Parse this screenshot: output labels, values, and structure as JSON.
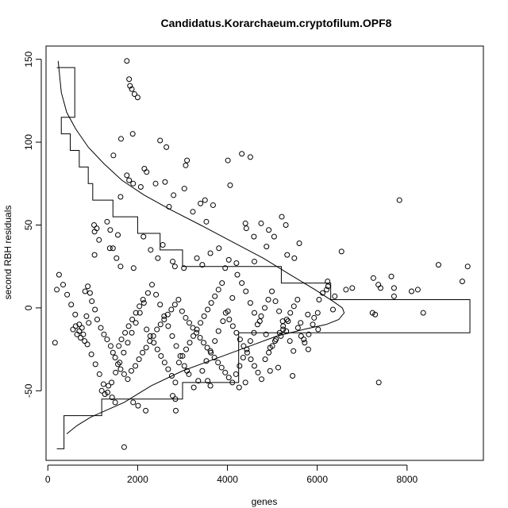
{
  "chart_data": {
    "type": "scatter",
    "title": "Candidatus.Korarchaeum.cryptofilum.OPF8",
    "xlabel": "genes",
    "ylabel": "second RBH residuals",
    "xlim": [
      -40,
      9700
    ],
    "ylim": [
      -92,
      158
    ],
    "x_ticks": [
      0,
      2000,
      4000,
      6000,
      8000
    ],
    "y_ticks": [
      -50,
      0,
      50,
      100,
      150
    ],
    "points": [
      [
        1760,
        149
      ],
      [
        1810,
        138
      ],
      [
        1830,
        134
      ],
      [
        1870,
        132
      ],
      [
        1930,
        129
      ],
      [
        2000,
        127
      ],
      [
        1890,
        105
      ],
      [
        2500,
        101
      ],
      [
        2640,
        97
      ],
      [
        1460,
        92
      ],
      [
        1630,
        102
      ],
      [
        3070,
        86
      ],
      [
        3100,
        89
      ],
      [
        4010,
        89
      ],
      [
        4320,
        93
      ],
      [
        4510,
        91
      ],
      [
        2150,
        84
      ],
      [
        2200,
        82
      ],
      [
        1760,
        80
      ],
      [
        1810,
        77
      ],
      [
        1900,
        75
      ],
      [
        2070,
        73
      ],
      [
        2400,
        75
      ],
      [
        2610,
        76
      ],
      [
        2800,
        68
      ],
      [
        3040,
        72
      ],
      [
        4060,
        74
      ],
      [
        3230,
        58
      ],
      [
        3400,
        63
      ],
      [
        3500,
        65
      ],
      [
        3680,
        62
      ],
      [
        3530,
        52
      ],
      [
        1620,
        67
      ],
      [
        2700,
        61
      ],
      [
        7830,
        65
      ],
      [
        4400,
        51
      ],
      [
        4420,
        48
      ],
      [
        4750,
        51
      ],
      [
        4920,
        47
      ],
      [
        5210,
        55
      ],
      [
        5300,
        50
      ],
      [
        4590,
        43
      ],
      [
        5040,
        43
      ],
      [
        4870,
        37
      ],
      [
        5600,
        39
      ],
      [
        5490,
        30
      ],
      [
        5330,
        32
      ],
      [
        4600,
        28
      ],
      [
        1030,
        50
      ],
      [
        1090,
        48
      ],
      [
        1040,
        46
      ],
      [
        1320,
        52
      ],
      [
        1390,
        47
      ],
      [
        1560,
        44
      ],
      [
        1140,
        41
      ],
      [
        1380,
        36
      ],
      [
        1040,
        32
      ],
      [
        1450,
        36
      ],
      [
        1530,
        30
      ],
      [
        1620,
        25
      ],
      [
        1910,
        24
      ],
      [
        2130,
        43
      ],
      [
        2290,
        35
      ],
      [
        2560,
        38
      ],
      [
        2450,
        30
      ],
      [
        2780,
        28
      ],
      [
        2830,
        25
      ],
      [
        3030,
        24
      ],
      [
        3320,
        30
      ],
      [
        3440,
        26
      ],
      [
        3620,
        33
      ],
      [
        3810,
        36
      ],
      [
        4030,
        29
      ],
      [
        4200,
        27
      ],
      [
        3950,
        24
      ],
      [
        6540,
        34
      ],
      [
        8700,
        26
      ],
      [
        9350,
        25
      ],
      [
        9230,
        16
      ],
      [
        7250,
        18
      ],
      [
        7360,
        14
      ],
      [
        7410,
        12
      ],
      [
        7650,
        19
      ],
      [
        7710,
        12
      ],
      [
        7710,
        7
      ],
      [
        8100,
        10
      ],
      [
        8240,
        11
      ],
      [
        8360,
        -3
      ],
      [
        7230,
        -3
      ],
      [
        7290,
        -4
      ],
      [
        7370,
        -45
      ],
      [
        6780,
        12
      ],
      [
        6640,
        11
      ],
      [
        6390,
        7
      ],
      [
        6230,
        16
      ],
      [
        6240,
        13
      ],
      [
        6210,
        11
      ],
      [
        6120,
        9
      ],
      [
        6040,
        5
      ],
      [
        6350,
        -1
      ],
      [
        6010,
        -3
      ],
      [
        5930,
        -6
      ],
      [
        5900,
        -10
      ],
      [
        6020,
        -13
      ],
      [
        5810,
        -16
      ],
      [
        5700,
        -19
      ],
      [
        5570,
        -12
      ],
      [
        5630,
        -9
      ],
      [
        5790,
        -4
      ],
      [
        5350,
        -8
      ],
      [
        5240,
        -13
      ],
      [
        5190,
        -17
      ],
      [
        5060,
        -20
      ],
      [
        4950,
        -24
      ],
      [
        4860,
        -16
      ],
      [
        4720,
        -8
      ],
      [
        4600,
        -3
      ],
      [
        4510,
        3
      ],
      [
        4410,
        10
      ],
      [
        4320,
        15
      ],
      [
        4220,
        20
      ],
      [
        4110,
        6
      ],
      [
        4010,
        -2
      ],
      [
        3900,
        -8
      ],
      [
        3800,
        -14
      ],
      [
        3720,
        -20
      ],
      [
        3620,
        -26
      ],
      [
        3530,
        -32
      ],
      [
        3440,
        -38
      ],
      [
        3350,
        -44
      ],
      [
        3250,
        -48
      ],
      [
        3140,
        -40
      ],
      [
        3040,
        -35
      ],
      [
        2950,
        -29
      ],
      [
        2860,
        -23
      ],
      [
        2770,
        -17
      ],
      [
        2680,
        -11
      ],
      [
        2590,
        -5
      ],
      [
        2500,
        2
      ],
      [
        2410,
        8
      ],
      [
        2320,
        14
      ],
      [
        2230,
        9
      ],
      [
        2140,
        3
      ],
      [
        2050,
        -3
      ],
      [
        1960,
        -9
      ],
      [
        1870,
        -15
      ],
      [
        1780,
        -21
      ],
      [
        1690,
        -27
      ],
      [
        1600,
        -33
      ],
      [
        1510,
        -39
      ],
      [
        1420,
        -45
      ],
      [
        1330,
        -51
      ],
      [
        1240,
        -46
      ],
      [
        1150,
        -40
      ],
      [
        1060,
        -34
      ],
      [
        970,
        -28
      ],
      [
        880,
        -22
      ],
      [
        790,
        -16
      ],
      [
        700,
        -10
      ],
      [
        610,
        -4
      ],
      [
        520,
        2
      ],
      [
        430,
        8
      ],
      [
        340,
        14
      ],
      [
        250,
        20
      ],
      [
        200,
        11
      ],
      [
        160,
        -21
      ],
      [
        830,
        10
      ],
      [
        890,
        13
      ],
      [
        940,
        9
      ],
      [
        980,
        4
      ],
      [
        1050,
        -1
      ],
      [
        860,
        -5
      ],
      [
        910,
        -9
      ],
      [
        760,
        -12
      ],
      [
        700,
        -14
      ],
      [
        620,
        -11
      ],
      [
        560,
        -13
      ],
      [
        650,
        -16
      ],
      [
        730,
        -18
      ],
      [
        820,
        -20
      ],
      [
        1100,
        -7
      ],
      [
        1180,
        -12
      ],
      [
        1250,
        -16
      ],
      [
        1320,
        -19
      ],
      [
        1400,
        -23
      ],
      [
        1450,
        -27
      ],
      [
        1500,
        -30
      ],
      [
        1560,
        -34
      ],
      [
        1620,
        -37
      ],
      [
        1700,
        -40
      ],
      [
        1780,
        -43
      ],
      [
        1860,
        -38
      ],
      [
        1950,
        -35
      ],
      [
        2030,
        -31
      ],
      [
        2110,
        -27
      ],
      [
        2190,
        -24
      ],
      [
        2270,
        -20
      ],
      [
        2350,
        -17
      ],
      [
        2430,
        -13
      ],
      [
        2510,
        -10
      ],
      [
        2590,
        -7
      ],
      [
        2670,
        -4
      ],
      [
        2750,
        -1
      ],
      [
        2830,
        2
      ],
      [
        2910,
        5
      ],
      [
        2990,
        -2
      ],
      [
        3070,
        -6
      ],
      [
        3150,
        -9
      ],
      [
        3230,
        -12
      ],
      [
        3310,
        -15
      ],
      [
        3390,
        -18
      ],
      [
        3470,
        -21
      ],
      [
        3550,
        -24
      ],
      [
        3630,
        -27
      ],
      [
        3710,
        -30
      ],
      [
        3790,
        -33
      ],
      [
        3870,
        -36
      ],
      [
        3950,
        -39
      ],
      [
        4030,
        -42
      ],
      [
        4110,
        -45
      ],
      [
        4190,
        -40
      ],
      [
        4270,
        -35
      ],
      [
        4350,
        -30
      ],
      [
        4430,
        -25
      ],
      [
        4510,
        -20
      ],
      [
        4590,
        -15
      ],
      [
        4670,
        -10
      ],
      [
        4750,
        -5
      ],
      [
        4830,
        0
      ],
      [
        4910,
        5
      ],
      [
        4990,
        10
      ],
      [
        5070,
        4
      ],
      [
        5150,
        -2
      ],
      [
        5230,
        -8
      ],
      [
        5310,
        -14
      ],
      [
        5390,
        -20
      ],
      [
        5470,
        -26
      ],
      [
        1700,
        -84
      ],
      [
        1900,
        -57
      ],
      [
        2010,
        -59
      ],
      [
        2180,
        -62
      ],
      [
        2780,
        -53
      ],
      [
        2840,
        -55
      ],
      [
        2850,
        -62
      ],
      [
        3100,
        -38
      ],
      [
        3560,
        -44
      ],
      [
        3620,
        -47
      ],
      [
        4260,
        -48
      ],
      [
        4400,
        -45
      ],
      [
        4950,
        -38
      ],
      [
        5130,
        -36
      ],
      [
        5450,
        -41
      ],
      [
        1200,
        -50
      ],
      [
        1270,
        -52
      ],
      [
        1350,
        -47
      ],
      [
        1430,
        -54
      ],
      [
        1500,
        -57
      ],
      [
        1580,
        -23
      ],
      [
        1640,
        -19
      ],
      [
        1720,
        -15
      ],
      [
        1800,
        -11
      ],
      [
        1880,
        -7
      ],
      [
        1960,
        -3
      ],
      [
        2040,
        1
      ],
      [
        2120,
        5
      ],
      [
        2200,
        -13
      ],
      [
        2280,
        -17
      ],
      [
        2360,
        -21
      ],
      [
        2440,
        -25
      ],
      [
        2520,
        -29
      ],
      [
        2600,
        -33
      ],
      [
        2680,
        -37
      ],
      [
        2760,
        -41
      ],
      [
        2840,
        -45
      ],
      [
        2920,
        -33
      ],
      [
        3000,
        -29
      ],
      [
        3080,
        -25
      ],
      [
        3160,
        -21
      ],
      [
        3240,
        -17
      ],
      [
        3320,
        -13
      ],
      [
        3400,
        -9
      ],
      [
        3480,
        -5
      ],
      [
        3560,
        -1
      ],
      [
        3640,
        3
      ],
      [
        3720,
        7
      ],
      [
        3800,
        11
      ],
      [
        3880,
        15
      ],
      [
        3960,
        -3
      ],
      [
        4040,
        -7
      ],
      [
        4120,
        -11
      ],
      [
        4200,
        -15
      ],
      [
        4280,
        -19
      ],
      [
        4360,
        -23
      ],
      [
        4440,
        -27
      ],
      [
        4520,
        -31
      ],
      [
        4600,
        -35
      ],
      [
        4680,
        -39
      ],
      [
        4760,
        -43
      ],
      [
        4840,
        -31
      ],
      [
        4920,
        -27
      ],
      [
        5000,
        -23
      ],
      [
        5080,
        -19
      ],
      [
        5160,
        -15
      ],
      [
        5240,
        -11
      ],
      [
        5320,
        -7
      ],
      [
        5400,
        -3
      ],
      [
        5480,
        1
      ],
      [
        5560,
        5
      ],
      [
        5640,
        -17
      ],
      [
        5720,
        -21
      ],
      [
        5800,
        -25
      ]
    ],
    "curve": [
      [
        230,
        149
      ],
      [
        300,
        130
      ],
      [
        420,
        118
      ],
      [
        620,
        108
      ],
      [
        900,
        97
      ],
      [
        1250,
        87
      ],
      [
        1650,
        77
      ],
      [
        2150,
        68
      ],
      [
        2750,
        59
      ],
      [
        3400,
        50
      ],
      [
        4100,
        40
      ],
      [
        4800,
        30
      ],
      [
        5400,
        20
      ],
      [
        5950,
        11
      ],
      [
        6350,
        4
      ],
      [
        6560,
        0
      ],
      [
        6600,
        -3
      ],
      [
        6480,
        -7
      ],
      [
        6200,
        -10
      ],
      [
        5700,
        -13
      ],
      [
        5100,
        -17
      ],
      [
        4500,
        -23
      ],
      [
        3800,
        -30
      ],
      [
        3000,
        -38
      ],
      [
        2300,
        -47
      ],
      [
        1700,
        -57
      ],
      [
        1200,
        -63
      ],
      [
        950,
        -66
      ],
      [
        650,
        -71
      ],
      [
        420,
        -76
      ]
    ],
    "histogram": {
      "bins": [
        -85,
        -75,
        -65,
        -55,
        -45,
        -35,
        -25,
        -15,
        -5,
        5,
        15,
        25,
        35,
        45,
        55,
        65,
        75,
        85,
        95,
        105,
        115,
        125,
        135,
        145
      ],
      "counts_x": [
        360,
        360,
        1200,
        3000,
        4250,
        4250,
        4250,
        9400,
        9400,
        6300,
        5200,
        3000,
        2500,
        2000,
        1450,
        1000,
        900,
        700,
        500,
        300,
        600,
        600,
        600
      ]
    }
  }
}
